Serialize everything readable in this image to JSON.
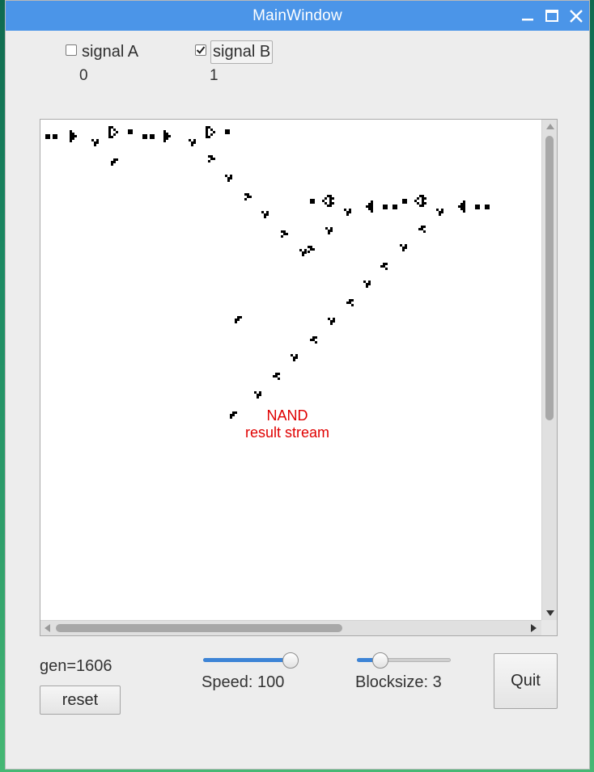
{
  "window": {
    "title": "MainWindow",
    "controls": [
      "minimize-icon",
      "maximize-icon",
      "close-icon"
    ]
  },
  "signals": [
    {
      "label": "signal A",
      "checked": false,
      "value": "0"
    },
    {
      "label": "signal B",
      "checked": true,
      "value": "1"
    }
  ],
  "canvas": {
    "annotation_line1": "NAND",
    "annotation_line2": "result stream",
    "annotation_color": "#e00000",
    "cell_color": "#000000"
  },
  "status": {
    "generation": "gen=1606"
  },
  "buttons": {
    "reset": "reset",
    "quit": "Quit"
  },
  "sliders": {
    "speed": {
      "label": "Speed: 100",
      "fraction": 1.0
    },
    "blocksize": {
      "label": "Blocksize: 3",
      "fraction": 0.2
    }
  },
  "colors": {
    "titlebar": "#4b95e8",
    "window_bg": "#ededed",
    "slider_fill": "#3d84d6"
  }
}
